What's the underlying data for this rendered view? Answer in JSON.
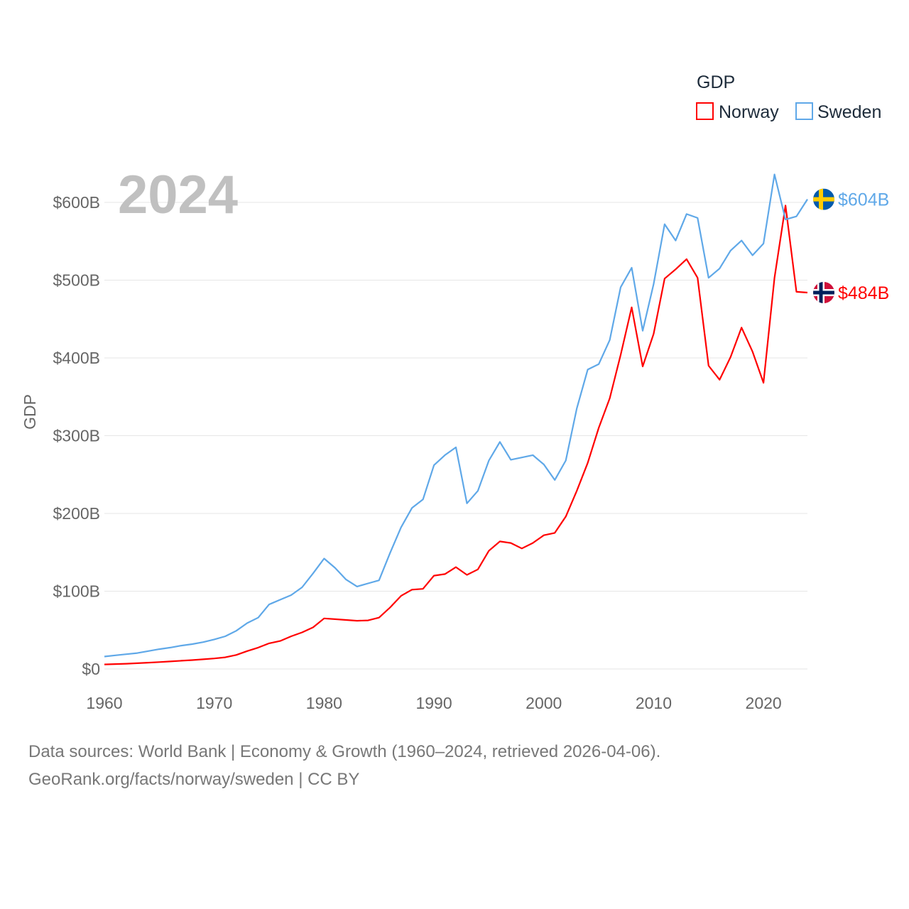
{
  "chart_data": {
    "type": "line",
    "year_watermark": "2024",
    "ylabel": "GDP",
    "legend": {
      "title": "GDP",
      "placement": "top-right"
    },
    "x": [
      1960,
      1961,
      1962,
      1963,
      1964,
      1965,
      1966,
      1967,
      1968,
      1969,
      1970,
      1971,
      1972,
      1973,
      1974,
      1975,
      1976,
      1977,
      1978,
      1979,
      1980,
      1981,
      1982,
      1983,
      1984,
      1985,
      1986,
      1987,
      1988,
      1989,
      1990,
      1991,
      1992,
      1993,
      1994,
      1995,
      1996,
      1997,
      1998,
      1999,
      2000,
      2001,
      2002,
      2003,
      2004,
      2005,
      2006,
      2007,
      2008,
      2009,
      2010,
      2011,
      2012,
      2013,
      2014,
      2015,
      2016,
      2017,
      2018,
      2019,
      2020,
      2021,
      2022,
      2023,
      2024
    ],
    "xlim": [
      1960,
      2024
    ],
    "ylim": [
      0,
      600
    ],
    "xticks": [
      1960,
      1970,
      1980,
      1990,
      2000,
      2010,
      2020
    ],
    "yticks": [
      0,
      100,
      200,
      300,
      400,
      500,
      600
    ],
    "ytick_labels": [
      "$0",
      "$100B",
      "$200B",
      "$300B",
      "$400B",
      "$500B",
      "$600B"
    ],
    "series": [
      {
        "name": "Norway",
        "color": "#ff0000",
        "end_label": "$484B",
        "values": [
          5.8,
          6.3,
          6.8,
          7.4,
          8.1,
          8.9,
          9.7,
          10.6,
          11.4,
          12.4,
          13.5,
          15,
          18,
          23,
          27.5,
          33,
          36,
          42,
          47,
          53.5,
          65,
          64,
          63,
          62,
          62.5,
          66,
          79,
          94,
          102,
          103,
          120,
          122,
          131,
          121,
          128,
          152,
          164,
          162,
          155,
          162,
          172,
          175,
          196,
          229,
          265,
          310,
          348,
          404,
          465,
          389,
          431,
          502,
          514,
          527,
          503,
          390,
          372,
          401,
          439,
          408,
          368,
          503,
          596,
          485,
          484
        ]
      },
      {
        "name": "Sweden",
        "color": "#5fa8e8",
        "end_label": "$604B",
        "values": [
          16,
          17.5,
          19,
          20.5,
          23,
          25.5,
          27.5,
          30,
          32,
          34.5,
          38,
          42,
          49,
          59,
          66,
          83,
          89,
          95,
          105,
          123,
          142,
          130,
          115,
          106,
          110,
          114,
          149,
          182,
          207,
          218,
          262,
          275,
          285,
          213,
          229,
          268,
          292,
          269,
          272,
          275,
          263,
          243,
          268,
          335,
          385,
          392,
          423,
          491,
          516,
          435,
          495,
          572,
          551,
          585,
          580,
          503,
          515,
          538,
          551,
          532,
          547,
          636,
          578,
          582,
          604
        ]
      }
    ]
  },
  "footer": {
    "line1": "Data sources: World Bank | Economy & Growth (1960–2024, retrieved 2026-04-06).",
    "line2": "GeoRank.org/facts/norway/sweden | CC BY"
  }
}
